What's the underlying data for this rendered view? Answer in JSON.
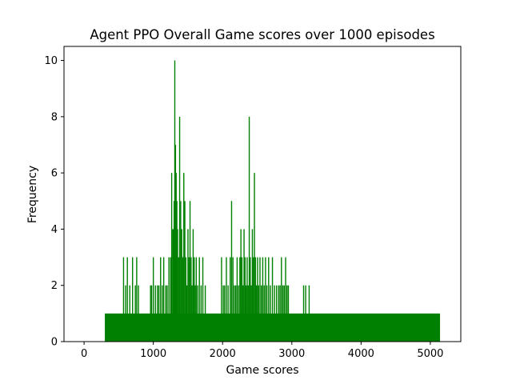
{
  "chart_data": {
    "type": "bar",
    "title": "Agent PPO Overall Game scores over 1000 episodes",
    "xlabel": "Game scores",
    "ylabel": "Frequency",
    "xlim": [
      -290,
      5440
    ],
    "ylim": [
      0,
      10.5
    ],
    "xticks": [
      0,
      1000,
      2000,
      3000,
      4000,
      5000
    ],
    "yticks": [
      0,
      2,
      4,
      6,
      8,
      10
    ],
    "grid": false,
    "bar_color": "#008000",
    "baseline": {
      "x_start": 300,
      "x_end": 5140,
      "value": 1
    },
    "series": [
      {
        "bars": [
          {
            "x": 570,
            "value": 3
          },
          {
            "x": 600,
            "value": 2
          },
          {
            "x": 625,
            "value": 3
          },
          {
            "x": 660,
            "value": 2
          },
          {
            "x": 700,
            "value": 3
          },
          {
            "x": 740,
            "value": 2
          },
          {
            "x": 760,
            "value": 3
          },
          {
            "x": 785,
            "value": 2
          },
          {
            "x": 960,
            "value": 2
          },
          {
            "x": 975,
            "value": 2
          },
          {
            "x": 1000,
            "value": 3
          },
          {
            "x": 1030,
            "value": 2
          },
          {
            "x": 1060,
            "value": 2
          },
          {
            "x": 1080,
            "value": 2
          },
          {
            "x": 1105,
            "value": 3
          },
          {
            "x": 1130,
            "value": 2
          },
          {
            "x": 1150,
            "value": 3
          },
          {
            "x": 1180,
            "value": 2
          },
          {
            "x": 1200,
            "value": 2
          },
          {
            "x": 1225,
            "value": 3
          },
          {
            "x": 1250,
            "value": 3
          },
          {
            "x": 1265,
            "value": 6
          },
          {
            "x": 1280,
            "value": 4
          },
          {
            "x": 1290,
            "value": 4
          },
          {
            "x": 1300,
            "value": 5
          },
          {
            "x": 1310,
            "value": 10
          },
          {
            "x": 1320,
            "value": 7
          },
          {
            "x": 1330,
            "value": 6
          },
          {
            "x": 1340,
            "value": 5
          },
          {
            "x": 1350,
            "value": 4
          },
          {
            "x": 1365,
            "value": 3
          },
          {
            "x": 1380,
            "value": 8
          },
          {
            "x": 1395,
            "value": 5
          },
          {
            "x": 1410,
            "value": 4
          },
          {
            "x": 1425,
            "value": 3
          },
          {
            "x": 1440,
            "value": 6
          },
          {
            "x": 1455,
            "value": 5
          },
          {
            "x": 1470,
            "value": 3
          },
          {
            "x": 1485,
            "value": 2
          },
          {
            "x": 1500,
            "value": 4
          },
          {
            "x": 1515,
            "value": 3
          },
          {
            "x": 1530,
            "value": 5
          },
          {
            "x": 1545,
            "value": 3
          },
          {
            "x": 1560,
            "value": 2
          },
          {
            "x": 1575,
            "value": 4
          },
          {
            "x": 1590,
            "value": 3
          },
          {
            "x": 1605,
            "value": 2
          },
          {
            "x": 1620,
            "value": 3
          },
          {
            "x": 1640,
            "value": 2
          },
          {
            "x": 1665,
            "value": 3
          },
          {
            "x": 1690,
            "value": 2
          },
          {
            "x": 1715,
            "value": 3
          },
          {
            "x": 1750,
            "value": 2
          },
          {
            "x": 1985,
            "value": 3
          },
          {
            "x": 2010,
            "value": 2
          },
          {
            "x": 2030,
            "value": 2
          },
          {
            "x": 2055,
            "value": 3
          },
          {
            "x": 2080,
            "value": 2
          },
          {
            "x": 2110,
            "value": 3
          },
          {
            "x": 2130,
            "value": 5
          },
          {
            "x": 2150,
            "value": 3
          },
          {
            "x": 2170,
            "value": 2
          },
          {
            "x": 2190,
            "value": 2
          },
          {
            "x": 2210,
            "value": 3
          },
          {
            "x": 2230,
            "value": 2
          },
          {
            "x": 2250,
            "value": 3
          },
          {
            "x": 2265,
            "value": 4
          },
          {
            "x": 2280,
            "value": 3
          },
          {
            "x": 2295,
            "value": 2
          },
          {
            "x": 2310,
            "value": 4
          },
          {
            "x": 2325,
            "value": 3
          },
          {
            "x": 2340,
            "value": 2
          },
          {
            "x": 2355,
            "value": 3
          },
          {
            "x": 2370,
            "value": 2
          },
          {
            "x": 2385,
            "value": 8
          },
          {
            "x": 2400,
            "value": 3
          },
          {
            "x": 2415,
            "value": 2
          },
          {
            "x": 2430,
            "value": 4
          },
          {
            "x": 2445,
            "value": 3
          },
          {
            "x": 2460,
            "value": 6
          },
          {
            "x": 2475,
            "value": 3
          },
          {
            "x": 2490,
            "value": 2
          },
          {
            "x": 2505,
            "value": 3
          },
          {
            "x": 2520,
            "value": 2
          },
          {
            "x": 2540,
            "value": 3
          },
          {
            "x": 2560,
            "value": 2
          },
          {
            "x": 2580,
            "value": 3
          },
          {
            "x": 2600,
            "value": 2
          },
          {
            "x": 2620,
            "value": 3
          },
          {
            "x": 2640,
            "value": 2
          },
          {
            "x": 2665,
            "value": 3
          },
          {
            "x": 2690,
            "value": 2
          },
          {
            "x": 2720,
            "value": 3
          },
          {
            "x": 2750,
            "value": 2
          },
          {
            "x": 2780,
            "value": 2
          },
          {
            "x": 2810,
            "value": 2
          },
          {
            "x": 2830,
            "value": 2
          },
          {
            "x": 2850,
            "value": 3
          },
          {
            "x": 2870,
            "value": 2
          },
          {
            "x": 2890,
            "value": 2
          },
          {
            "x": 2910,
            "value": 3
          },
          {
            "x": 2930,
            "value": 2
          },
          {
            "x": 2950,
            "value": 2
          },
          {
            "x": 3170,
            "value": 2
          },
          {
            "x": 3200,
            "value": 2
          },
          {
            "x": 3250,
            "value": 2
          }
        ]
      }
    ]
  }
}
